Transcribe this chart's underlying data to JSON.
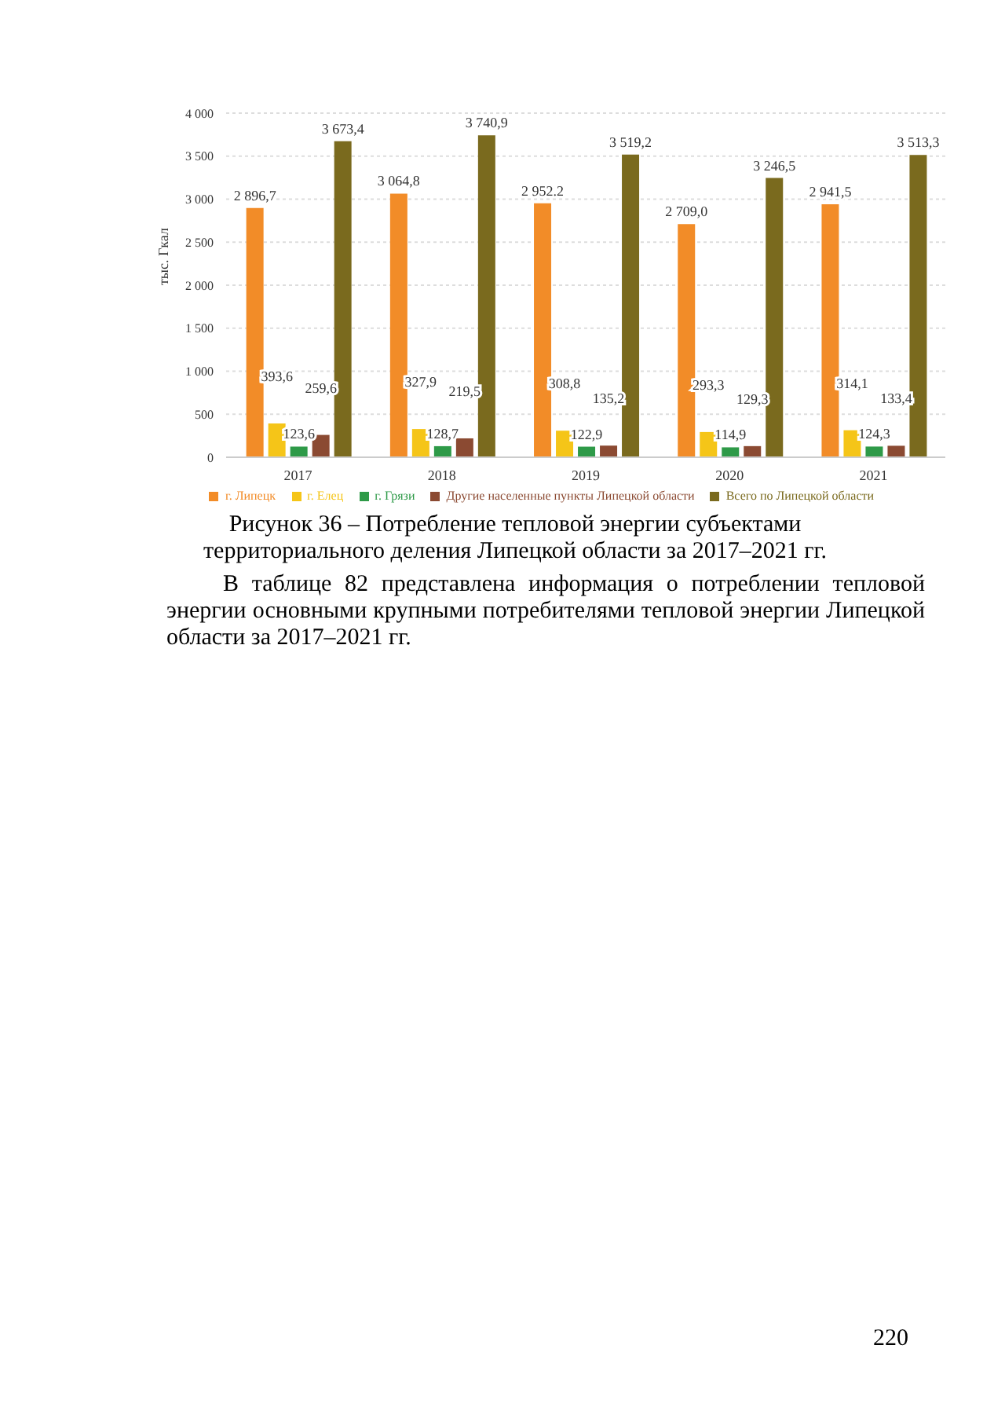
{
  "chart_data": {
    "type": "bar",
    "ylabel": "тыс. Гкал",
    "categories": [
      "2017",
      "2018",
      "2019",
      "2020",
      "2021"
    ],
    "series": [
      {
        "name": "г. Липецк",
        "color": "#f28c28",
        "values": [
          2896.7,
          3064.8,
          2952.2,
          2709.0,
          2941.5
        ],
        "value_labels": [
          "2 896,7",
          "3 064,8",
          "2 952.2",
          "2 709,0",
          "2 941,5"
        ]
      },
      {
        "name": "г. Елец",
        "color": "#f5c518",
        "values": [
          393.6,
          327.9,
          308.8,
          293.3,
          314.1
        ],
        "value_labels": [
          "393,6",
          "327,9",
          "308,8",
          "293,3",
          "314,1"
        ]
      },
      {
        "name": "г. Грязи",
        "color": "#2e9a48",
        "values": [
          123.6,
          128.7,
          122.9,
          114.9,
          124.3
        ],
        "value_labels": [
          "123,6",
          "128,7",
          "122,9",
          "114,9",
          "124,3"
        ]
      },
      {
        "name": "Другие населенные пункты Липецкой области",
        "color": "#8b4a32",
        "values": [
          259.6,
          219.5,
          135.2,
          129.3,
          133.4
        ],
        "value_labels": [
          "259,6",
          "219,5",
          "135,2",
          "129,3",
          "133,4"
        ]
      },
      {
        "name": "Всего по Липецкой области",
        "color": "#7a6a1e",
        "values": [
          3673.4,
          3740.9,
          3519.2,
          3246.5,
          3513.3
        ],
        "value_labels": [
          "3 673,4",
          "3 740,9",
          "3 519,2",
          "3 246,5",
          "3 513,3"
        ]
      }
    ],
    "ylim": [
      0,
      4000
    ],
    "yticks": [
      0,
      500,
      {
        "value": 1000,
        "label": "1 000"
      },
      {
        "value": 1500,
        "label": "1 500"
      },
      {
        "value": 2000,
        "label": "2 000"
      },
      {
        "value": 2500,
        "label": "2 500"
      },
      {
        "value": 3000,
        "label": "3 000"
      },
      {
        "value": 3500,
        "label": "3 500"
      },
      {
        "value": 4000,
        "label": "4 000"
      }
    ],
    "grid": true,
    "legend": "bottom",
    "annotations": [
      "Рисунок 36 – Потребление тепловой энергии субъектами территориального деления Липецкой области за 2017–2021 гг.",
      "В таблице 82 представлена информация о потреблении тепловой энергии основными крупными потребителями тепловой энергии Липецкой области за 2017–2021 гг.",
      "220"
    ]
  }
}
